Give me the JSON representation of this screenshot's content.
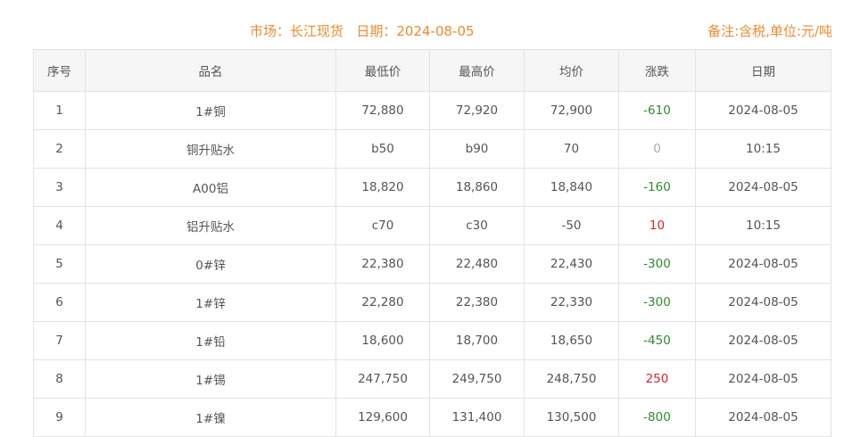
{
  "header": {
    "market_label": "市场：",
    "market": "长江现货",
    "date_label": "日期：",
    "date": "2024-08-05",
    "note": "备注:含税,单位:元/吨"
  },
  "columns": [
    "序号",
    "品名",
    "最低价",
    "最高价",
    "均价",
    "涨跌",
    "日期"
  ],
  "colors": {
    "title": "#ee8a2e",
    "up": "#e0202a",
    "down": "#2d8a2d",
    "zero": "#aaaaaa"
  },
  "rows": [
    {
      "no": "1",
      "name": "1#铜",
      "low": "72,880",
      "high": "72,920",
      "avg": "72,900",
      "change": "-610",
      "date": "2024-08-05"
    },
    {
      "no": "2",
      "name": "铜升贴水",
      "low": "b50",
      "high": "b90",
      "avg": "70",
      "change": "0",
      "date": "10:15"
    },
    {
      "no": "3",
      "name": "A00铝",
      "low": "18,820",
      "high": "18,860",
      "avg": "18,840",
      "change": "-160",
      "date": "2024-08-05"
    },
    {
      "no": "4",
      "name": "铝升贴水",
      "low": "c70",
      "high": "c30",
      "avg": "-50",
      "change": "10",
      "date": "10:15"
    },
    {
      "no": "5",
      "name": "0#锌",
      "low": "22,380",
      "high": "22,480",
      "avg": "22,430",
      "change": "-300",
      "date": "2024-08-05"
    },
    {
      "no": "6",
      "name": "1#锌",
      "low": "22,280",
      "high": "22,380",
      "avg": "22,330",
      "change": "-300",
      "date": "2024-08-05"
    },
    {
      "no": "7",
      "name": "1#铅",
      "low": "18,600",
      "high": "18,700",
      "avg": "18,650",
      "change": "-450",
      "date": "2024-08-05"
    },
    {
      "no": "8",
      "name": "1#锡",
      "low": "247,750",
      "high": "249,750",
      "avg": "248,750",
      "change": "250",
      "date": "2024-08-05"
    },
    {
      "no": "9",
      "name": "1#镍",
      "low": "129,600",
      "high": "131,400",
      "avg": "130,500",
      "change": "-800",
      "date": "2024-08-05"
    }
  ]
}
